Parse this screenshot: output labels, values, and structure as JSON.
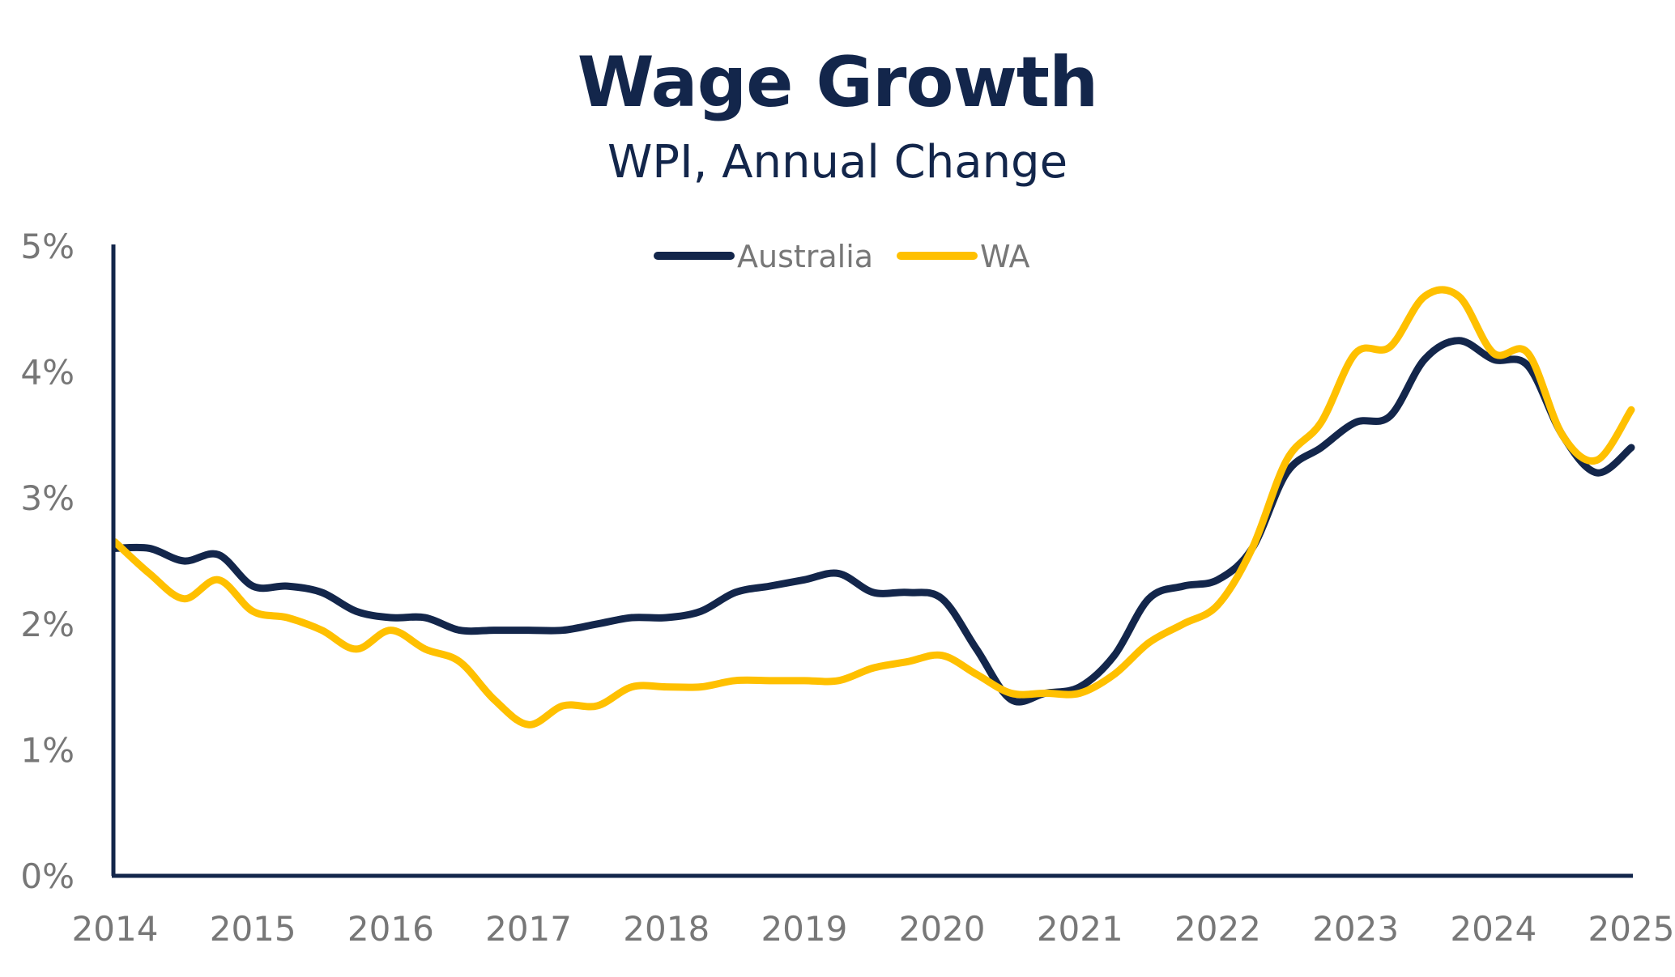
{
  "chart_data": {
    "type": "line",
    "title": "Wage Growth",
    "subtitle": "WPI, Annual Change",
    "xlabel": "",
    "ylabel": "",
    "ylim": [
      0,
      5
    ],
    "xlim": [
      2014,
      2025
    ],
    "y_ticks": [
      "0%",
      "1%",
      "2%",
      "3%",
      "4%",
      "5%"
    ],
    "x_ticks": [
      "2014",
      "2015",
      "2016",
      "2017",
      "2018",
      "2019",
      "2020",
      "2021",
      "2022",
      "2023",
      "2024",
      "2025"
    ],
    "grid": false,
    "legend": "top-center",
    "x": [
      2014.0,
      2014.25,
      2014.5,
      2014.75,
      2015.0,
      2015.25,
      2015.5,
      2015.75,
      2016.0,
      2016.25,
      2016.5,
      2016.75,
      2017.0,
      2017.25,
      2017.5,
      2017.75,
      2018.0,
      2018.25,
      2018.5,
      2018.75,
      2019.0,
      2019.25,
      2019.5,
      2019.75,
      2020.0,
      2020.25,
      2020.5,
      2020.75,
      2021.0,
      2021.25,
      2021.5,
      2021.75,
      2022.0,
      2022.25,
      2022.5,
      2022.75,
      2023.0,
      2023.25,
      2023.5,
      2023.75,
      2024.0,
      2024.25,
      2024.5,
      2024.75,
      2025.0
    ],
    "series": [
      {
        "name": "Australia",
        "color": "#13264b",
        "values": [
          2.6,
          2.6,
          2.5,
          2.55,
          2.3,
          2.3,
          2.25,
          2.1,
          2.05,
          2.05,
          1.95,
          1.95,
          1.95,
          1.95,
          2.0,
          2.05,
          2.05,
          2.1,
          2.25,
          2.3,
          2.35,
          2.4,
          2.25,
          2.25,
          2.2,
          1.8,
          1.4,
          1.45,
          1.5,
          1.75,
          2.2,
          2.3,
          2.35,
          2.6,
          3.2,
          3.4,
          3.6,
          3.65,
          4.1,
          4.25,
          4.1,
          4.05,
          3.5,
          3.2,
          3.4
        ]
      },
      {
        "name": "WA",
        "color": "#ffc000",
        "values": [
          2.65,
          2.4,
          2.2,
          2.35,
          2.1,
          2.05,
          1.95,
          1.8,
          1.95,
          1.8,
          1.7,
          1.4,
          1.2,
          1.35,
          1.35,
          1.5,
          1.5,
          1.5,
          1.55,
          1.55,
          1.55,
          1.55,
          1.65,
          1.7,
          1.75,
          1.6,
          1.45,
          1.45,
          1.45,
          1.6,
          1.85,
          2.0,
          2.15,
          2.6,
          3.3,
          3.6,
          4.15,
          4.2,
          4.6,
          4.6,
          4.15,
          4.15,
          3.5,
          3.3,
          3.7
        ]
      }
    ]
  }
}
